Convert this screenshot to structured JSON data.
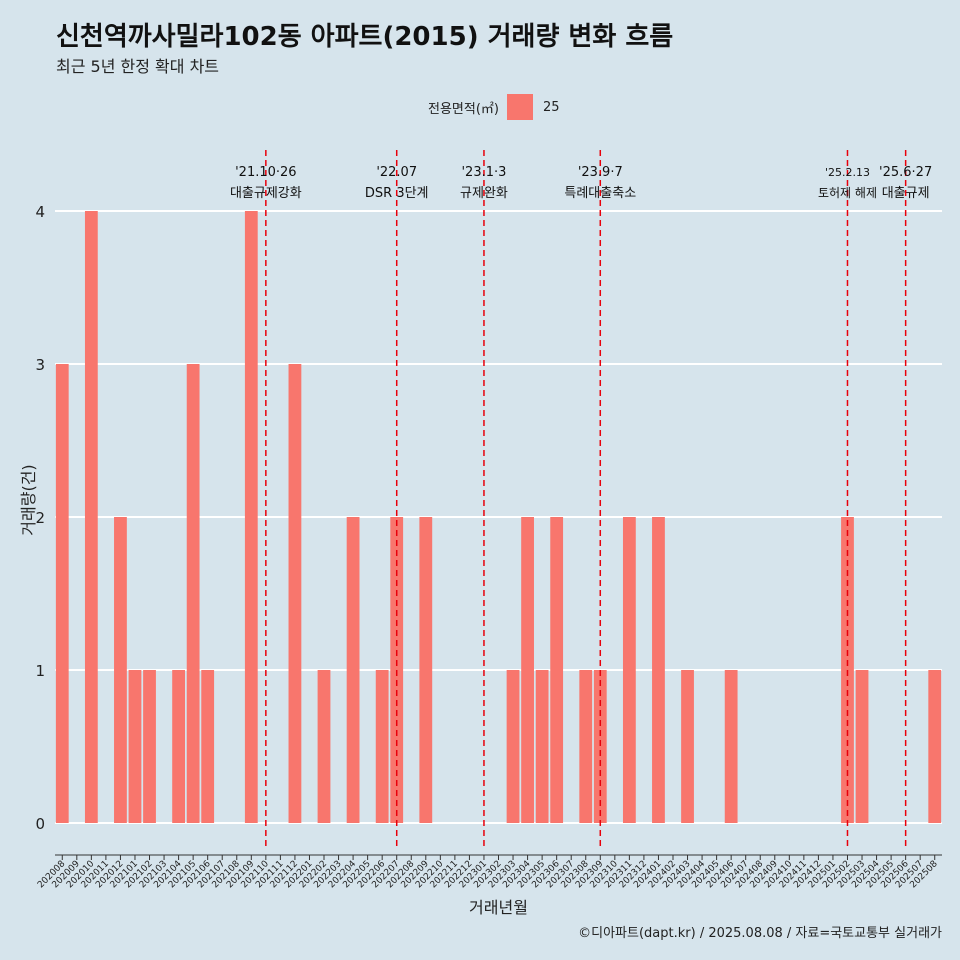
{
  "title": "신천역까사밀라102동 아파트(2015) 거래량 변화 흐름",
  "subtitle": "최근 5년 한정 확대 차트",
  "caption": "©디아파트(dapt.kr) / 2025.08.08 / 자료=국토교통부 실거래가",
  "colors": {
    "bar": "#f8766d",
    "background": "#d6e4ec",
    "grid": "#ffffff",
    "event_line": "#e8000b"
  },
  "chart_data": {
    "type": "bar",
    "xlabel": "거래년월",
    "ylabel": "거래량(건)",
    "ylim": [
      0,
      4
    ],
    "y_ticks": [
      0,
      1,
      2,
      3,
      4
    ],
    "legend": {
      "title": "전용면적(㎡)",
      "position": "top"
    },
    "categories": [
      "202008",
      "202009",
      "202010",
      "202011",
      "202012",
      "202101",
      "202102",
      "202103",
      "202104",
      "202105",
      "202106",
      "202107",
      "202108",
      "202109",
      "202110",
      "202111",
      "202112",
      "202201",
      "202202",
      "202203",
      "202204",
      "202205",
      "202206",
      "202207",
      "202208",
      "202209",
      "202210",
      "202211",
      "202212",
      "202301",
      "202302",
      "202303",
      "202304",
      "202305",
      "202306",
      "202307",
      "202308",
      "202309",
      "202310",
      "202311",
      "202312",
      "202401",
      "202402",
      "202403",
      "202404",
      "202405",
      "202406",
      "202407",
      "202408",
      "202409",
      "202410",
      "202411",
      "202412",
      "202501",
      "202502",
      "202503",
      "202504",
      "202505",
      "202506",
      "202507",
      "202508"
    ],
    "series": [
      {
        "name": "25",
        "values": [
          3,
          0,
          4,
          0,
          2,
          1,
          1,
          0,
          1,
          3,
          1,
          0,
          0,
          4,
          0,
          0,
          3,
          0,
          1,
          0,
          2,
          0,
          1,
          2,
          0,
          2,
          0,
          0,
          0,
          0,
          0,
          1,
          2,
          1,
          2,
          0,
          1,
          1,
          0,
          2,
          0,
          2,
          0,
          1,
          0,
          0,
          1,
          0,
          0,
          0,
          0,
          0,
          0,
          0,
          2,
          1,
          0,
          0,
          0,
          0,
          1
        ]
      }
    ],
    "events": [
      {
        "date": "'21.10·26",
        "label": "대출규제강화",
        "at": "202110"
      },
      {
        "date": "'22.07",
        "label": "DSR 3단계",
        "at": "202207"
      },
      {
        "date": "'23.1·3",
        "label": "규제완화",
        "at": "202301"
      },
      {
        "date": "'23.9·7",
        "label": "특례대출축소",
        "at": "202309"
      },
      {
        "date": "'25.2.13",
        "label": "토허제 해제",
        "at": "202502"
      },
      {
        "date": "'25.6·27",
        "label": "대출규제",
        "at": "202506"
      }
    ]
  }
}
